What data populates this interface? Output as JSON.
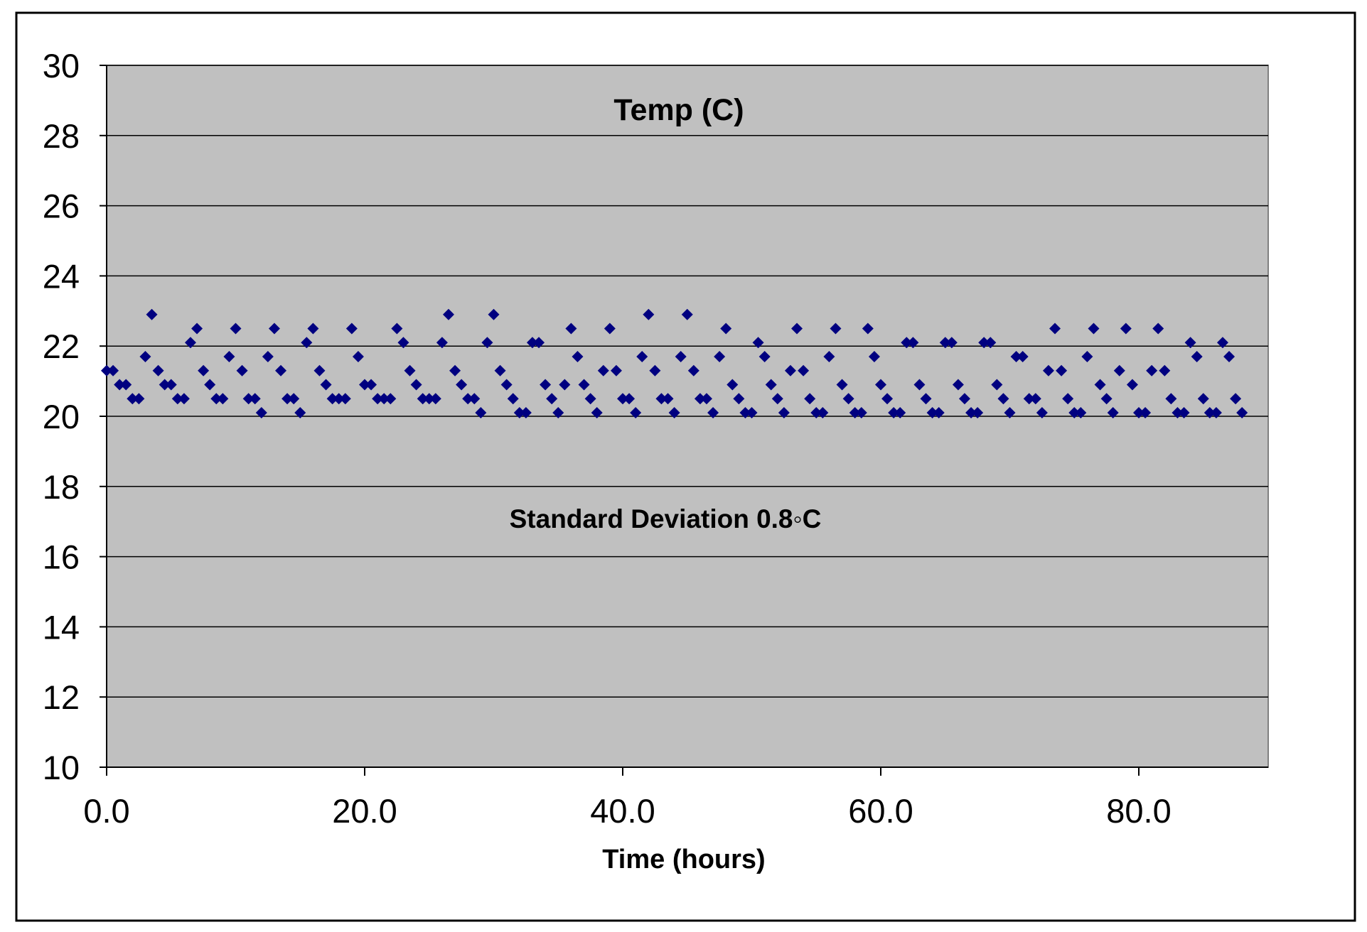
{
  "chart_data": {
    "type": "scatter",
    "title": "Temp (C)",
    "xlabel": "Time (hours)",
    "ylabel": "",
    "annotation": "Standard Deviation 0.8◦C",
    "xlim": [
      0,
      90
    ],
    "ylim": [
      10,
      30
    ],
    "x_ticks": [
      0,
      20,
      40,
      60,
      80
    ],
    "x_tick_labels": [
      "0.0",
      "20.0",
      "40.0",
      "60.0",
      "80.0"
    ],
    "y_ticks": [
      10,
      12,
      14,
      16,
      18,
      20,
      22,
      24,
      26,
      28,
      30
    ],
    "y_tick_labels": [
      "10",
      "12",
      "14",
      "16",
      "18",
      "20",
      "22",
      "24",
      "26",
      "28",
      "30"
    ],
    "grid": true,
    "plot_background": "#c0c0c0",
    "marker_color": "#000080",
    "marker": "diamond",
    "x": [
      0.0,
      0.5,
      1.0,
      1.5,
      2.0,
      2.5,
      3.0,
      3.5,
      4.0,
      4.5,
      5.0,
      5.5,
      6.0,
      6.5,
      7.0,
      7.5,
      8.0,
      8.5,
      9.0,
      9.5,
      10.0,
      10.5,
      11.0,
      11.5,
      12.0,
      12.5,
      13.0,
      13.5,
      14.0,
      14.5,
      15.0,
      15.5,
      16.0,
      16.5,
      17.0,
      17.5,
      18.0,
      18.5,
      19.0,
      19.5,
      20.0,
      20.5,
      21.0,
      21.5,
      22.0,
      22.5,
      23.0,
      23.5,
      24.0,
      24.5,
      25.0,
      25.5,
      26.0,
      26.5,
      27.0,
      27.5,
      28.0,
      28.5,
      29.0,
      29.5,
      30.0,
      30.5,
      31.0,
      31.5,
      32.0,
      32.5,
      33.0,
      33.5,
      34.0,
      34.5,
      35.0,
      35.5,
      36.0,
      36.5,
      37.0,
      37.5,
      38.0,
      38.5,
      39.0,
      39.5,
      40.0,
      40.5,
      41.0,
      41.5,
      42.0,
      42.5,
      43.0,
      43.5,
      44.0,
      44.5,
      45.0,
      45.5,
      46.0,
      46.5,
      47.0,
      47.5,
      48.0,
      48.5,
      49.0,
      49.5,
      50.0,
      50.5,
      51.0,
      51.5,
      52.0,
      52.5,
      53.0,
      53.5,
      54.0,
      54.5,
      55.0,
      55.5,
      56.0,
      56.5,
      57.0,
      57.5,
      58.0,
      58.5,
      59.0,
      59.5,
      60.0,
      60.5,
      61.0,
      61.5,
      62.0,
      62.5,
      63.0,
      63.5,
      64.0,
      64.5,
      65.0,
      65.5,
      66.0,
      66.5,
      67.0,
      67.5,
      68.0,
      68.5,
      69.0,
      69.5,
      70.0,
      70.5,
      71.0,
      71.5,
      72.0,
      72.5,
      73.0,
      73.5,
      74.0,
      74.5,
      75.0,
      75.5,
      76.0,
      76.5,
      77.0,
      77.5,
      78.0,
      78.5,
      79.0,
      79.5,
      80.0,
      80.5,
      81.0,
      81.5,
      82.0,
      82.5,
      83.0,
      83.5,
      84.0,
      84.5,
      85.0,
      85.5,
      86.0,
      86.5,
      87.0,
      87.5,
      88.0
    ],
    "y": [
      21.3,
      21.3,
      20.9,
      20.9,
      20.5,
      20.5,
      21.7,
      22.9,
      21.3,
      20.9,
      20.9,
      20.5,
      20.5,
      22.1,
      22.5,
      21.3,
      20.9,
      20.5,
      20.5,
      21.7,
      22.5,
      21.3,
      20.5,
      20.5,
      20.1,
      21.7,
      22.5,
      21.3,
      20.5,
      20.5,
      20.1,
      22.1,
      22.5,
      21.3,
      20.9,
      20.5,
      20.5,
      20.5,
      22.5,
      21.7,
      20.9,
      20.9,
      20.5,
      20.5,
      20.5,
      22.5,
      22.1,
      21.3,
      20.9,
      20.5,
      20.5,
      20.5,
      22.1,
      22.9,
      21.3,
      20.9,
      20.5,
      20.5,
      20.1,
      22.1,
      22.9,
      21.3,
      20.9,
      20.5,
      20.1,
      20.1,
      22.1,
      22.1,
      20.9,
      20.5,
      20.1,
      20.9,
      22.5,
      21.7,
      20.9,
      20.5,
      20.1,
      21.3,
      22.5,
      21.3,
      20.5,
      20.5,
      20.1,
      21.7,
      22.9,
      21.3,
      20.5,
      20.5,
      20.1,
      21.7,
      22.9,
      21.3,
      20.5,
      20.5,
      20.1,
      21.7,
      22.5,
      20.9,
      20.5,
      20.1,
      20.1,
      22.1,
      21.7,
      20.9,
      20.5,
      20.1,
      21.3,
      22.5,
      21.3,
      20.5,
      20.1,
      20.1,
      21.7,
      22.5,
      20.9,
      20.5,
      20.1,
      20.1,
      22.5,
      21.7,
      20.9,
      20.5,
      20.1,
      20.1,
      22.1,
      22.1,
      20.9,
      20.5,
      20.1,
      20.1,
      22.1,
      22.1,
      20.9,
      20.5,
      20.1,
      20.1,
      22.1,
      22.1,
      20.9,
      20.5,
      20.1,
      21.7,
      21.7,
      20.5,
      20.5,
      20.1,
      21.3,
      22.5,
      21.3,
      20.5,
      20.1,
      20.1,
      21.7,
      22.5,
      20.9,
      20.5,
      20.1,
      21.3,
      22.5,
      20.9,
      20.1,
      20.1,
      21.3,
      22.5,
      21.3,
      20.5,
      20.1,
      20.1,
      22.1,
      21.7,
      20.5,
      20.1,
      20.1,
      22.1,
      21.7,
      20.5,
      20.1
    ]
  }
}
